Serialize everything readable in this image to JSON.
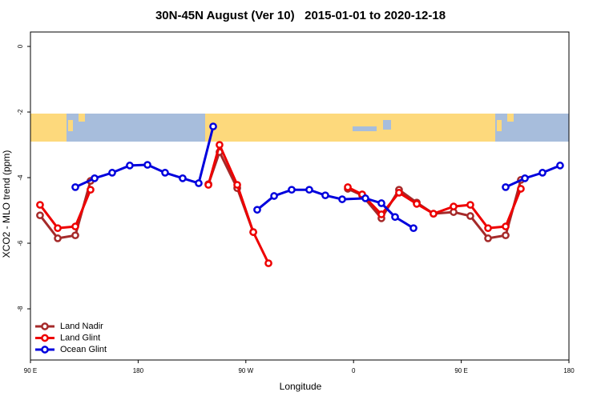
{
  "chart_data": {
    "type": "line",
    "title": "30N-45N August (Ver 10)   2015-01-01 to 2020-12-18",
    "x_label": "Longitude",
    "y_label": "XCO2 - MLO trend (ppm)",
    "xlim": [
      90,
      540
    ],
    "xticks": [
      {
        "value": 90,
        "label": "90 E"
      },
      180,
      {
        "value": 270,
        "label": "90 W"
      },
      {
        "value": 360,
        "label": "0"
      },
      {
        "value": 450,
        "label": "90 E"
      },
      {
        "value": 540,
        "label": "180"
      }
    ],
    "ylim": [
      -9.56,
      0.44
    ],
    "yticks": [
      0,
      -2,
      -4,
      -6,
      -8
    ],
    "legend": "bottom-left",
    "series": [
      {
        "name": "Land Nadir",
        "color": "#a52a2a",
        "x": [
          98,
          112.8,
          127.5,
          140.2,
          null,
          238.7,
          248,
          262.8,
          276.2,
          null,
          355.2,
          367.2,
          383.3,
          398,
          412.8,
          426.8,
          443.6,
          457.6,
          472.4,
          487.1,
          499.8
        ],
        "values": [
          -5.15,
          -5.85,
          -5.76,
          -4.1,
          null,
          -4.2,
          -3.22,
          -4.32,
          -5.66,
          null,
          -4.34,
          -4.54,
          -5.24,
          -4.37,
          -4.76,
          -5.1,
          -5.05,
          -5.17,
          -5.85,
          -5.76,
          -4.07
        ]
      },
      {
        "name": "Land Glint",
        "color": "#ee0000",
        "x": [
          98,
          112.8,
          127.5,
          140.2,
          null,
          238.7,
          248,
          262.8,
          276.2,
          288.9,
          null,
          355.2,
          367.2,
          383.3,
          398,
          412.8,
          426.8,
          443.6,
          457.6,
          472.4,
          487.1,
          499.8
        ],
        "values": [
          -4.83,
          -5.54,
          -5.49,
          -4.37,
          null,
          -4.22,
          -3.0,
          -4.22,
          -5.66,
          -6.61,
          null,
          -4.29,
          -4.51,
          -5.12,
          -4.46,
          -4.8,
          -5.1,
          -4.88,
          -4.83,
          -5.54,
          -5.49,
          -4.34
        ]
      },
      {
        "name": "Ocean Glint",
        "color": "#0000dd",
        "x": [
          127.5,
          143.6,
          158.3,
          173,
          187.8,
          202.5,
          217.2,
          230.6,
          242.7,
          null,
          279.5,
          293.6,
          308.3,
          323,
          336.4,
          350.5,
          369.9,
          383.3,
          394.7,
          410.1,
          null,
          487.1,
          503.2,
          517.9,
          532.6
        ],
        "values": [
          -4.29,
          -4.02,
          -3.85,
          -3.63,
          -3.61,
          -3.85,
          -4.02,
          -4.17,
          -2.44,
          null,
          -4.98,
          -4.56,
          -4.37,
          -4.37,
          -4.54,
          -4.66,
          -4.63,
          -4.78,
          -5.2,
          -5.54,
          null,
          -4.29,
          -4.02,
          -3.85,
          -3.63
        ]
      }
    ]
  }
}
